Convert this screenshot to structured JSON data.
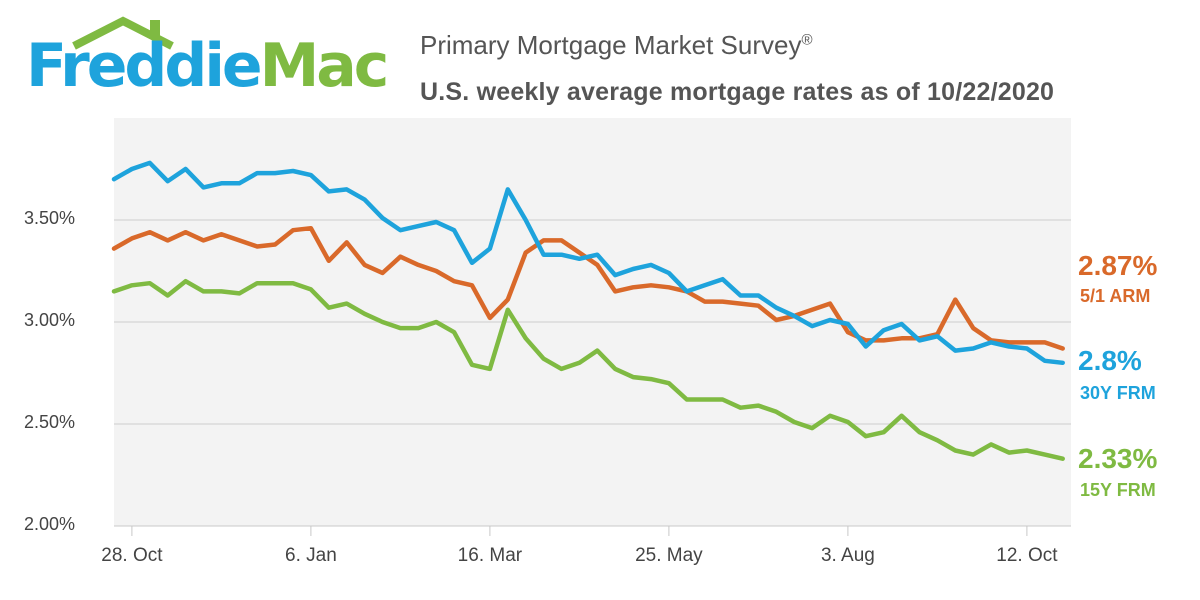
{
  "logo": {
    "word1": "Freddie",
    "word2": "Mac"
  },
  "header": {
    "title": "Primary Mortgage Market Survey",
    "title_mark": "®",
    "subtitle": "U.S. weekly average mortgage rates as of 10/22/2020"
  },
  "colors": {
    "arm": "#d9692a",
    "frm30": "#1ea3dc",
    "frm15": "#7fba42",
    "grid": "#d9d9d9",
    "plot_bg": "#f3f3f3"
  },
  "chart_data": {
    "type": "line",
    "title": "U.S. weekly average mortgage rates as of 10/22/2020",
    "ylim": [
      2.0,
      4.0
    ],
    "yticks": [
      2.0,
      2.5,
      3.0,
      3.5
    ],
    "ytick_labels": [
      "2.00%",
      "2.50%",
      "3.00%",
      "3.50%"
    ],
    "xticks": [
      {
        "index": 1,
        "label": "28. Oct"
      },
      {
        "index": 11,
        "label": "6. Jan"
      },
      {
        "index": 21,
        "label": "16. Mar"
      },
      {
        "index": 31,
        "label": "25. May"
      },
      {
        "index": 41,
        "label": "3. Aug"
      },
      {
        "index": 51,
        "label": "12. Oct"
      }
    ],
    "series": [
      {
        "name": "5/1 ARM",
        "key": "arm",
        "last_value_label": "2.87%",
        "values": [
          3.36,
          3.41,
          3.44,
          3.4,
          3.44,
          3.4,
          3.43,
          3.4,
          3.37,
          3.38,
          3.45,
          3.46,
          3.3,
          3.39,
          3.28,
          3.24,
          3.32,
          3.28,
          3.25,
          3.2,
          3.18,
          3.02,
          3.11,
          3.34,
          3.4,
          3.4,
          3.34,
          3.28,
          3.15,
          3.17,
          3.18,
          3.17,
          3.15,
          3.1,
          3.1,
          3.09,
          3.08,
          3.01,
          3.03,
          3.06,
          3.09,
          2.95,
          2.91,
          2.91,
          2.92,
          2.92,
          2.94,
          3.11,
          2.97,
          2.91,
          2.9,
          2.9,
          2.9,
          2.87
        ]
      },
      {
        "name": "30Y FRM",
        "key": "frm30",
        "last_value_label": "2.8%",
        "values": [
          3.7,
          3.75,
          3.78,
          3.69,
          3.75,
          3.66,
          3.68,
          3.68,
          3.73,
          3.73,
          3.74,
          3.72,
          3.64,
          3.65,
          3.6,
          3.51,
          3.45,
          3.47,
          3.49,
          3.45,
          3.29,
          3.36,
          3.65,
          3.5,
          3.33,
          3.33,
          3.31,
          3.33,
          3.23,
          3.26,
          3.28,
          3.24,
          3.15,
          3.18,
          3.21,
          3.13,
          3.13,
          3.07,
          3.03,
          2.98,
          3.01,
          2.99,
          2.88,
          2.96,
          2.99,
          2.91,
          2.93,
          2.86,
          2.87,
          2.9,
          2.88,
          2.87,
          2.81,
          2.8
        ]
      },
      {
        "name": "15Y FRM",
        "key": "frm15",
        "last_value_label": "2.33%",
        "values": [
          3.15,
          3.18,
          3.19,
          3.13,
          3.2,
          3.15,
          3.15,
          3.14,
          3.19,
          3.19,
          3.19,
          3.16,
          3.07,
          3.09,
          3.04,
          3.0,
          2.97,
          2.97,
          3.0,
          2.95,
          2.79,
          2.77,
          3.06,
          2.92,
          2.82,
          2.77,
          2.8,
          2.86,
          2.77,
          2.73,
          2.72,
          2.7,
          2.62,
          2.62,
          2.62,
          2.58,
          2.59,
          2.56,
          2.51,
          2.48,
          2.54,
          2.51,
          2.44,
          2.46,
          2.54,
          2.46,
          2.42,
          2.37,
          2.35,
          2.4,
          2.36,
          2.37,
          2.35,
          2.33
        ]
      }
    ]
  }
}
